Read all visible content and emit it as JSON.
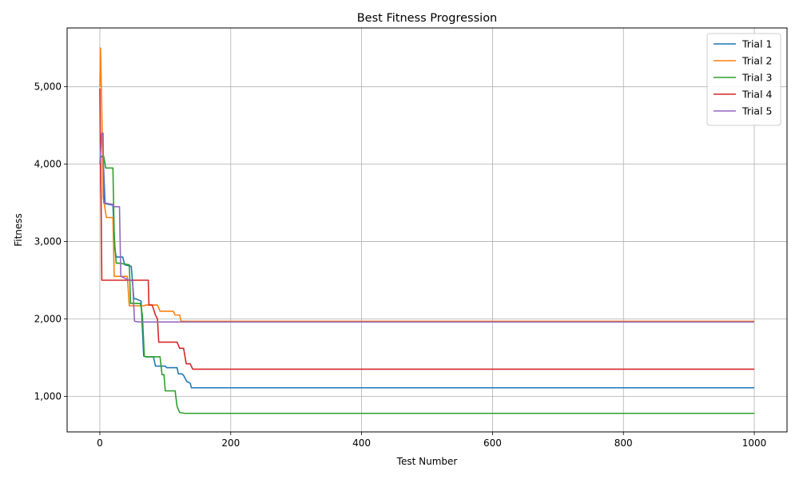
{
  "chart_data": {
    "type": "line",
    "title": "Best Fitness Progression",
    "xlabel": "Test Number",
    "ylabel": "Fitness",
    "xlim": [
      -50,
      1050
    ],
    "ylim": [
      540,
      5760
    ],
    "x_ticks": [
      0,
      200,
      400,
      600,
      800,
      1000
    ],
    "x_tick_labels": [
      "0",
      "200",
      "400",
      "600",
      "800",
      "1000"
    ],
    "y_ticks": [
      1000,
      2000,
      3000,
      4000,
      5000
    ],
    "y_tick_labels": [
      "1,000",
      "2,000",
      "3,000",
      "4,000",
      "5,000"
    ],
    "grid": true,
    "legend_position": "top-right",
    "series": [
      {
        "name": "Trial 1",
        "color": "#1f77b4",
        "x": [
          0,
          5,
          8,
          20,
          23,
          25,
          35,
          38,
          48,
          52,
          55,
          63,
          67,
          70,
          82,
          85,
          100,
          102,
          118,
          120,
          125,
          128,
          133,
          138,
          140,
          1000
        ],
        "y": [
          4100,
          4100,
          3490,
          3470,
          2900,
          2800,
          2800,
          2700,
          2680,
          2260,
          2260,
          2230,
          1520,
          1510,
          1510,
          1390,
          1390,
          1370,
          1370,
          1290,
          1290,
          1270,
          1190,
          1170,
          1110,
          1110
        ]
      },
      {
        "name": "Trial 2",
        "color": "#ff7f0e",
        "x": [
          0,
          1,
          3,
          5,
          10,
          20,
          22,
          30,
          42,
          45,
          55,
          68,
          70,
          88,
          92,
          112,
          115,
          122,
          124,
          1000
        ],
        "y": [
          5000,
          5500,
          4700,
          3580,
          3310,
          3310,
          2550,
          2550,
          2550,
          2170,
          2170,
          2170,
          2180,
          2180,
          2100,
          2100,
          2050,
          2050,
          1970,
          1970
        ]
      },
      {
        "name": "Trial 3",
        "color": "#2ca02c",
        "x": [
          0,
          2,
          6,
          9,
          12,
          20,
          22,
          25,
          30,
          45,
          47,
          50,
          62,
          65,
          68,
          70,
          80,
          92,
          95,
          98,
          100,
          115,
          118,
          122,
          130,
          1000
        ],
        "y": [
          4050,
          4100,
          4100,
          3950,
          3950,
          3950,
          3050,
          2720,
          2720,
          2700,
          2200,
          2200,
          2200,
          2050,
          1520,
          1510,
          1510,
          1510,
          1280,
          1280,
          1070,
          1070,
          870,
          790,
          780,
          780
        ]
      },
      {
        "name": "Trial 4",
        "color": "#d62728",
        "x": [
          0,
          1,
          2,
          3,
          72,
          74,
          75,
          80,
          85,
          88,
          90,
          98,
          100,
          118,
          122,
          128,
          132,
          138,
          142,
          1000
        ],
        "y": [
          4980,
          4100,
          3500,
          2500,
          2500,
          2500,
          2180,
          2180,
          2050,
          2000,
          1700,
          1700,
          1700,
          1700,
          1620,
          1620,
          1420,
          1420,
          1350,
          1350
        ]
      },
      {
        "name": "Trial 5",
        "color": "#9467bd",
        "x": [
          0,
          3,
          5,
          6,
          20,
          22,
          30,
          32,
          45,
          48,
          50,
          53,
          60,
          1000
        ],
        "y": [
          4000,
          4400,
          4400,
          3500,
          3480,
          3450,
          3450,
          2550,
          2500,
          2500,
          2480,
          1970,
          1960,
          1960
        ]
      }
    ]
  }
}
